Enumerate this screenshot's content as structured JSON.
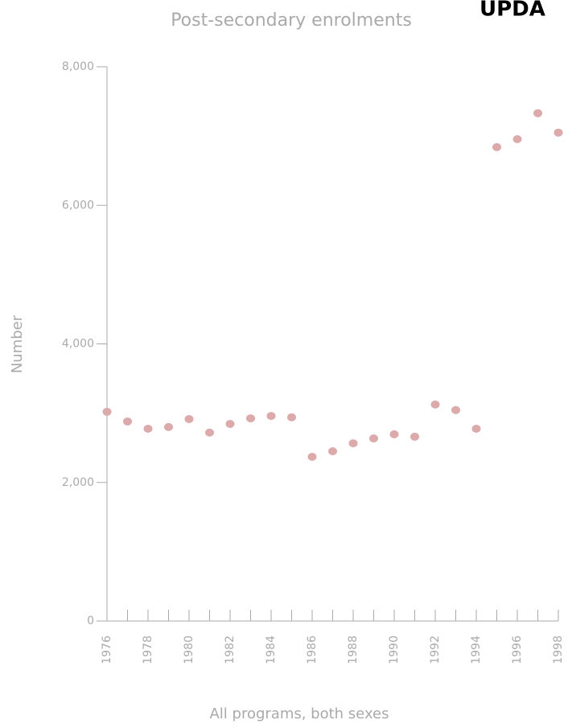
{
  "chart_data": {
    "type": "scatter",
    "title": "Post-secondary enrolments",
    "corner_text": "UPDA",
    "x_label": "All programs, both sexes",
    "y_label": "Number",
    "categories": [
      "1976",
      null,
      "1978",
      null,
      "1980",
      null,
      "1982",
      null,
      "1984",
      null,
      "1986",
      null,
      "1988",
      null,
      "1990",
      null,
      "1992",
      null,
      "1994",
      null,
      "1996",
      null,
      "1998"
    ],
    "values": [
      3020,
      2880,
      2775,
      2800,
      2915,
      2720,
      2845,
      2925,
      2960,
      2940,
      2370,
      2450,
      2565,
      2635,
      2695,
      2660,
      3125,
      3045,
      2775,
      6840,
      6955,
      7330,
      7050
    ],
    "color": "#dcaaaa",
    "ylim": [
      0,
      8000
    ],
    "yticks": [
      0,
      {
        "value": 2000,
        "label": "2,000"
      },
      {
        "value": 4000,
        "label": "4,000"
      },
      {
        "value": 6000,
        "label": "6,000"
      },
      {
        "value": 8000,
        "label": "8,000"
      }
    ]
  }
}
